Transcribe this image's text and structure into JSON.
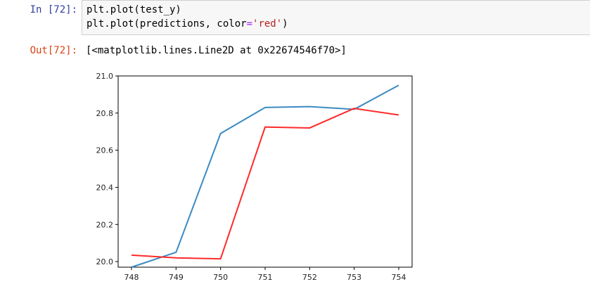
{
  "input_cell": {
    "prompt": "In [72]:",
    "code_lines": [
      [
        {
          "t": "plt.plot(test_y)"
        }
      ],
      [
        {
          "t": "plt.plot(predictions, color"
        },
        {
          "t": "=",
          "c": "op"
        },
        {
          "t": "'red'",
          "c": "str"
        },
        {
          "t": ")"
        }
      ]
    ]
  },
  "output_cell": {
    "prompt": "Out[72]:",
    "text": "[<matplotlib.lines.Line2D at 0x22674546f70>]"
  },
  "chart_data": {
    "type": "line",
    "x": [
      748,
      749,
      750,
      751,
      752,
      753,
      754
    ],
    "xticks": [
      "748",
      "749",
      "750",
      "751",
      "752",
      "753",
      "754"
    ],
    "yticks": [
      "20.0",
      "20.2",
      "20.4",
      "20.6",
      "20.8",
      "21.0"
    ],
    "xlim": [
      747.7,
      754.3
    ],
    "ylim": [
      19.97,
      21.0
    ],
    "series": [
      {
        "color": "#3b8bc2",
        "values": [
          19.97,
          20.05,
          20.69,
          20.83,
          20.835,
          20.82,
          20.95
        ]
      },
      {
        "color": "#ff2a2a",
        "values": [
          20.035,
          20.02,
          20.015,
          20.725,
          20.72,
          20.825,
          20.79
        ]
      }
    ],
    "grid": false
  }
}
